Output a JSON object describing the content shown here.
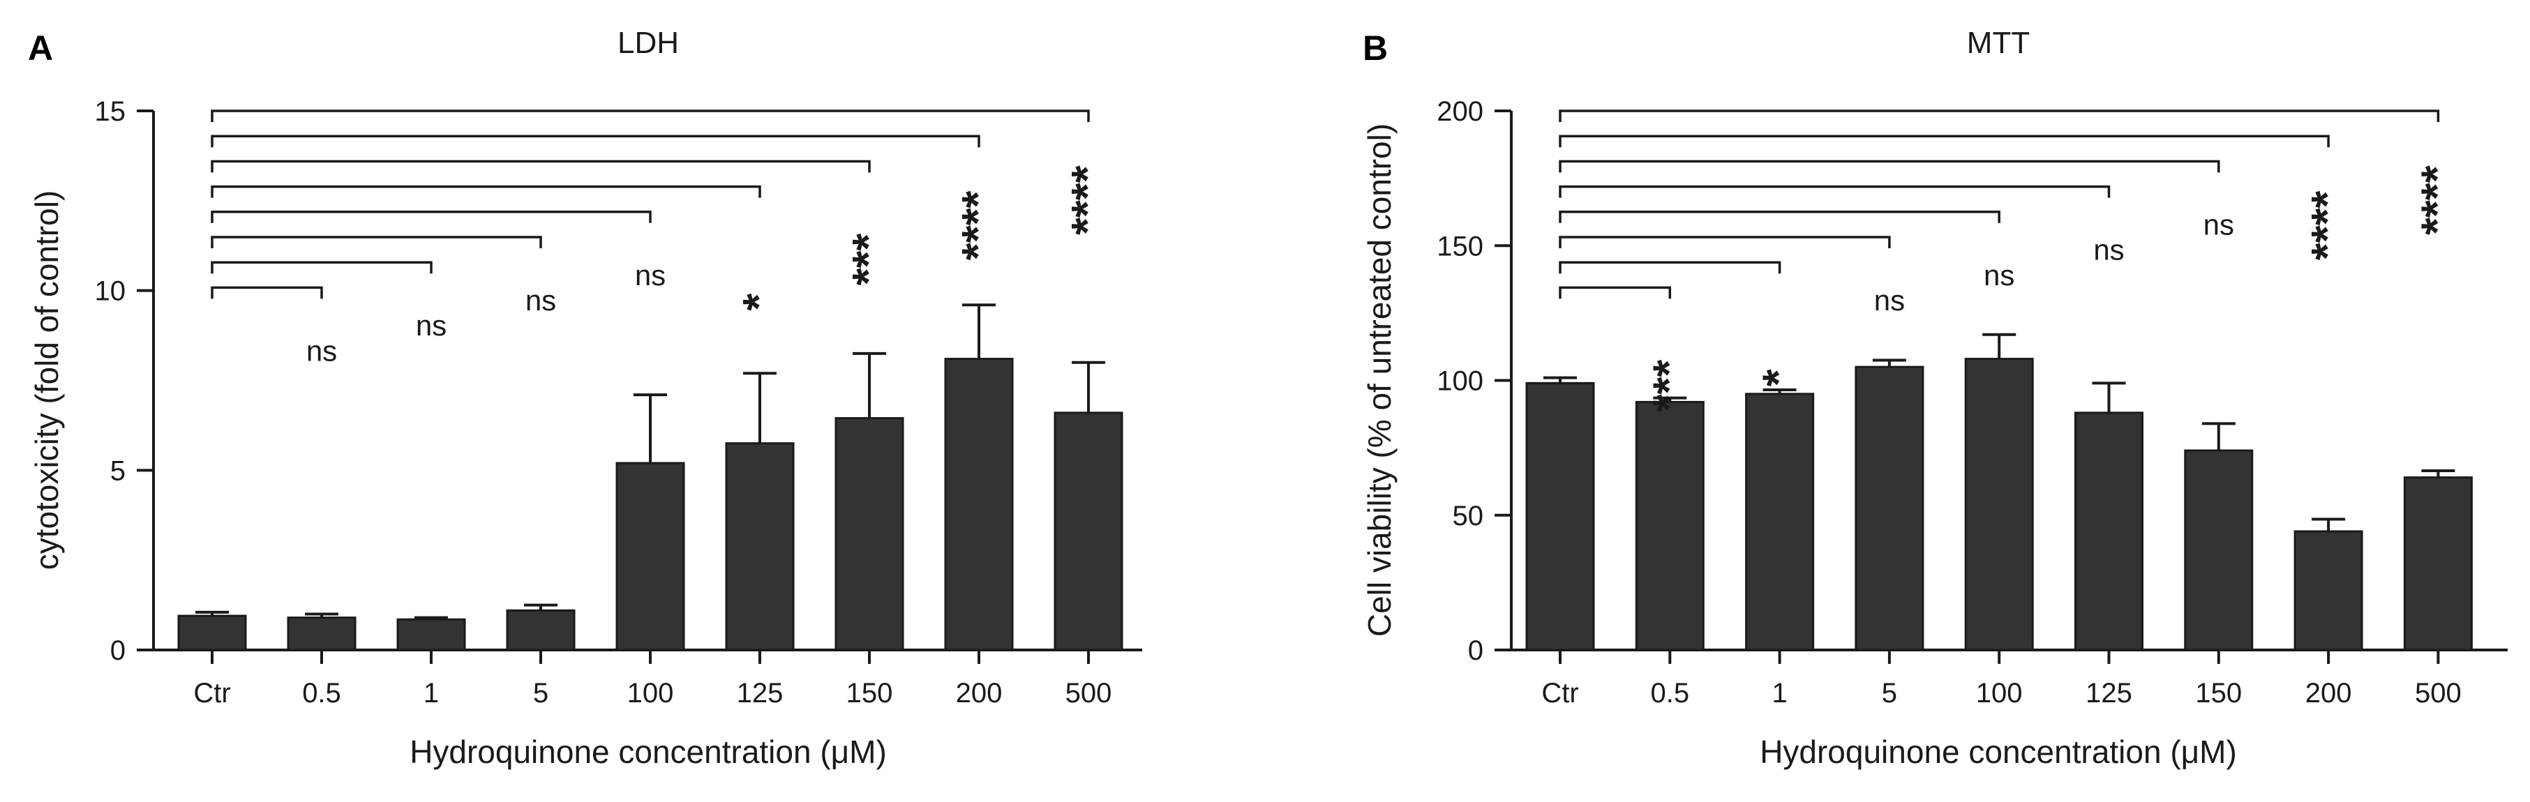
{
  "chart_data": [
    {
      "type": "bar",
      "panel": "A",
      "title": "LDH",
      "xlabel": "Hydroquinone concentration (μM)",
      "ylabel": "cytotoxicity (fold of control)",
      "ylim": [
        0,
        15
      ],
      "yticks": [
        0,
        5,
        10,
        15
      ],
      "categories": [
        "Ctr",
        "0.5",
        "1",
        "5",
        "100",
        "125",
        "150",
        "200",
        "500"
      ],
      "values": [
        0.95,
        0.9,
        0.85,
        1.1,
        5.2,
        5.75,
        6.45,
        8.1,
        6.6
      ],
      "errors": [
        0.1,
        0.1,
        0.05,
        0.15,
        1.9,
        1.95,
        1.8,
        1.5,
        1.4
      ],
      "comparisons": [
        {
          "to": "0.5",
          "label": "ns"
        },
        {
          "to": "1",
          "label": "ns"
        },
        {
          "to": "5",
          "label": "ns"
        },
        {
          "to": "100",
          "label": "ns"
        },
        {
          "to": "125",
          "label": "*"
        },
        {
          "to": "150",
          "label": "***"
        },
        {
          "to": "200",
          "label": "****"
        },
        {
          "to": "500",
          "label": "****"
        }
      ]
    },
    {
      "type": "bar",
      "panel": "B",
      "title": "MTT",
      "xlabel": "Hydroquinone concentration (μM)",
      "ylabel": "Cell viability (% of untreated control)",
      "ylim": [
        0,
        200
      ],
      "yticks": [
        0,
        50,
        100,
        150,
        200
      ],
      "categories": [
        "Ctr",
        "0.5",
        "1",
        "5",
        "100",
        "125",
        "150",
        "200",
        "500"
      ],
      "values": [
        99,
        92,
        95,
        105,
        108,
        88,
        74,
        44,
        64
      ],
      "errors": [
        2,
        1.5,
        1.5,
        2.5,
        9,
        11,
        10,
        4.5,
        2.5
      ],
      "comparisons": [
        {
          "to": "0.5",
          "label": "***"
        },
        {
          "to": "1",
          "label": "*"
        },
        {
          "to": "5",
          "label": "ns"
        },
        {
          "to": "100",
          "label": "ns"
        },
        {
          "to": "125",
          "label": "ns"
        },
        {
          "to": "150",
          "label": "ns"
        },
        {
          "to": "200",
          "label": "****"
        },
        {
          "to": "500",
          "label": "****"
        }
      ]
    }
  ]
}
